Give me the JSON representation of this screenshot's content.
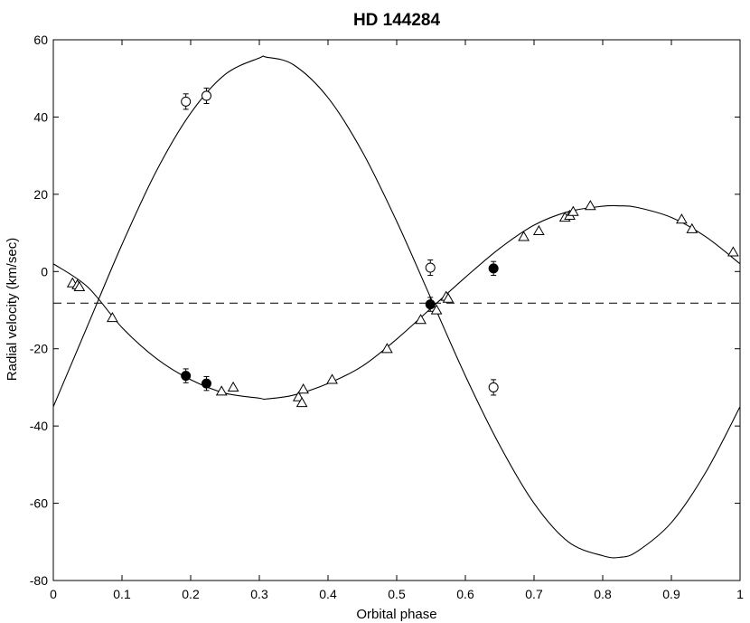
{
  "chart_data": {
    "type": "scatter",
    "title": "HD 144284",
    "xlabel": "Orbital phase",
    "ylabel": "Radial velocity (km/sec)",
    "xlim": [
      0,
      1
    ],
    "ylim": [
      -80,
      60
    ],
    "x_ticks": [
      "0",
      "0.1",
      "0.2",
      "0.3",
      "0.4",
      "0.5",
      "0.6",
      "0.7",
      "0.8",
      "0.9",
      "1"
    ],
    "y_ticks": [
      "-80",
      "-60",
      "-40",
      "-20",
      "0",
      "20",
      "40",
      "60"
    ],
    "grid": false,
    "systemic_velocity": -8.2,
    "curves": [
      {
        "x": [
          0,
          0.05,
          0.1,
          0.15,
          0.2,
          0.25,
          0.3,
          0.31,
          0.35,
          0.4,
          0.45,
          0.5,
          0.55,
          0.6,
          0.65,
          0.7,
          0.75,
          0.8,
          0.825,
          0.85,
          0.9,
          0.95,
          1.0
        ],
        "y": [
          -35,
          -14,
          7,
          26,
          41,
          51,
          55.3,
          55.5,
          53.5,
          45,
          31,
          13,
          -7,
          -27,
          -45,
          -60,
          -70,
          -73.6,
          -74,
          -72.5,
          -65,
          -52,
          -35
        ]
      },
      {
        "x": [
          0,
          0.05,
          0.1,
          0.15,
          0.2,
          0.25,
          0.3,
          0.31,
          0.35,
          0.4,
          0.45,
          0.5,
          0.55,
          0.6,
          0.65,
          0.7,
          0.75,
          0.8,
          0.825,
          0.85,
          0.9,
          0.95,
          1.0
        ],
        "y": [
          2,
          -4,
          -14.5,
          -22.5,
          -28,
          -31.5,
          -32.8,
          -33,
          -32,
          -29,
          -24.5,
          -17.5,
          -9.5,
          -1.5,
          6,
          12,
          15.5,
          16.9,
          17,
          16.6,
          14,
          9,
          2
        ]
      }
    ],
    "series": [
      {
        "name": "",
        "marker": "triangle-open",
        "x": [
          0.028,
          0.035,
          0.038,
          0.086,
          0.245,
          0.262,
          0.357,
          0.362,
          0.364,
          0.406,
          0.486,
          0.535,
          0.558,
          0.572,
          0.575,
          0.685,
          0.707,
          0.745,
          0.752,
          0.757,
          0.782,
          0.915,
          0.93,
          0.99
        ],
        "y": [
          -3,
          -3.5,
          -4,
          -12,
          -31,
          -30,
          -32.5,
          -34,
          -30.5,
          -28,
          -20,
          -12.5,
          -10,
          -6.5,
          -7,
          9,
          10.5,
          14,
          14.5,
          15.5,
          17,
          13.5,
          11,
          5
        ]
      },
      {
        "name": "",
        "marker": "circle-filled",
        "x": [
          0.193,
          0.223,
          0.549,
          0.641
        ],
        "y": [
          -27,
          -29,
          -8.5,
          0.8
        ],
        "yerr": [
          1.8,
          1.8,
          1.8,
          1.8
        ]
      },
      {
        "name": "",
        "marker": "circle-open",
        "x": [
          0.193,
          0.223,
          0.549,
          0.641
        ],
        "y": [
          44,
          45.5,
          1,
          -30
        ],
        "yerr": [
          2,
          2,
          2,
          2
        ]
      }
    ]
  }
}
